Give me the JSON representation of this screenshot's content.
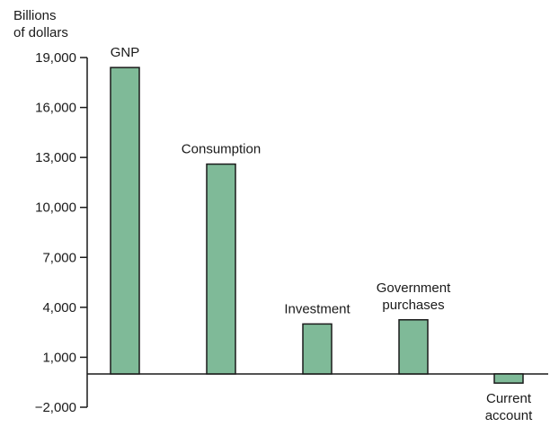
{
  "chart_data": {
    "type": "bar",
    "ylabel": [
      "Billions",
      "of dollars"
    ],
    "ylim": [
      -2000,
      19000
    ],
    "yticks": [
      -2000,
      1000,
      4000,
      7000,
      10000,
      13000,
      16000,
      19000
    ],
    "ytick_labels": [
      "−2,000",
      "1,000",
      "4,000",
      "7,000",
      "10,000",
      "13,000",
      "16,000",
      "19,000"
    ],
    "categories": [
      {
        "label": [
          "GNP"
        ],
        "value": 18400
      },
      {
        "label": [
          "Consumption"
        ],
        "value": 12600
      },
      {
        "label": [
          "Investment"
        ],
        "value": 3000
      },
      {
        "label": [
          "Government",
          "purchases"
        ],
        "value": 3250
      },
      {
        "label": [
          "Current",
          "account"
        ],
        "value": -550
      }
    ],
    "colors": {
      "bar_fill": "#7fba98",
      "bar_stroke": "#1a1a1a",
      "axis": "#1a1a1a"
    }
  }
}
